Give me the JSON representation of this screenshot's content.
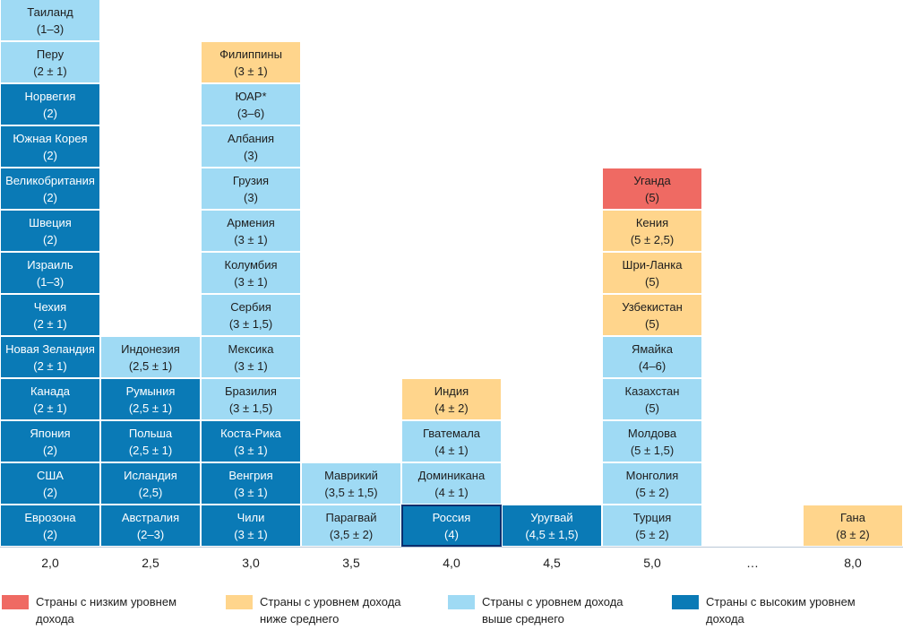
{
  "chart_data": {
    "type": "table",
    "title": "",
    "xlabel": "",
    "ylabel": "",
    "tick_labels": [
      "2,0",
      "2,5",
      "3,0",
      "3,5",
      "4,0",
      "4,5",
      "5,0",
      "…",
      "8,0"
    ],
    "colors": {
      "low": "#ef6a63",
      "lower_middle": "#ffd58c",
      "upper_middle": "#9fdaf4",
      "high": "#0a7ab6"
    },
    "legend": [
      {
        "category": "low",
        "label": "Страны с низким уровнем дохода"
      },
      {
        "category": "lower_middle",
        "label": "Страны с уровнем дохода ниже среднего"
      },
      {
        "category": "upper_middle",
        "label": "Страны с уровнем дохода выше среднего"
      },
      {
        "category": "high",
        "label": "Страны с высоким уровнем дохода"
      }
    ],
    "columns": [
      {
        "target": "2,0",
        "countries": [
          {
            "name": "Еврозона",
            "range": "(2)",
            "category": "high"
          },
          {
            "name": "США",
            "range": "(2)",
            "category": "high"
          },
          {
            "name": "Япония",
            "range": "(2)",
            "category": "high"
          },
          {
            "name": "Канада",
            "range": "(2 ± 1)",
            "category": "high"
          },
          {
            "name": "Новая Зеландия",
            "range": "(2 ± 1)",
            "category": "high"
          },
          {
            "name": "Чехия",
            "range": "(2 ± 1)",
            "category": "high"
          },
          {
            "name": "Израиль",
            "range": "(1–3)",
            "category": "high"
          },
          {
            "name": "Швеция",
            "range": "(2)",
            "category": "high"
          },
          {
            "name": "Великобритания",
            "range": "(2)",
            "category": "high"
          },
          {
            "name": "Южная Корея",
            "range": "(2)",
            "category": "high"
          },
          {
            "name": "Норвегия",
            "range": "(2)",
            "category": "high"
          },
          {
            "name": "Перу",
            "range": "(2 ± 1)",
            "category": "upper_middle"
          },
          {
            "name": "Таиланд",
            "range": "(1–3)",
            "category": "upper_middle"
          }
        ]
      },
      {
        "target": "2,5",
        "countries": [
          {
            "name": "Австралия",
            "range": "(2–3)",
            "category": "high"
          },
          {
            "name": "Исландия",
            "range": "(2,5)",
            "category": "high"
          },
          {
            "name": "Польша",
            "range": "(2,5 ± 1)",
            "category": "high"
          },
          {
            "name": "Румыния",
            "range": "(2,5 ± 1)",
            "category": "high"
          },
          {
            "name": "Индонезия",
            "range": "(2,5 ± 1)",
            "category": "upper_middle"
          }
        ]
      },
      {
        "target": "3,0",
        "countries": [
          {
            "name": "Чили",
            "range": "(3 ± 1)",
            "category": "high"
          },
          {
            "name": "Венгрия",
            "range": "(3 ± 1)",
            "category": "high"
          },
          {
            "name": "Коста-Рика",
            "range": "(3 ± 1)",
            "category": "high"
          },
          {
            "name": "Бразилия",
            "range": "(3 ± 1,5)",
            "category": "upper_middle"
          },
          {
            "name": "Мексика",
            "range": "(3 ± 1)",
            "category": "upper_middle"
          },
          {
            "name": "Сербия",
            "range": "(3 ± 1,5)",
            "category": "upper_middle"
          },
          {
            "name": "Колумбия",
            "range": "(3 ± 1)",
            "category": "upper_middle"
          },
          {
            "name": "Армения",
            "range": "(3 ± 1)",
            "category": "upper_middle"
          },
          {
            "name": "Грузия",
            "range": "(3)",
            "category": "upper_middle"
          },
          {
            "name": "Албания",
            "range": "(3)",
            "category": "upper_middle"
          },
          {
            "name": "ЮАР*",
            "range": "(3–6)",
            "category": "upper_middle"
          },
          {
            "name": "Филиппины",
            "range": "(3 ± 1)",
            "category": "lower_middle"
          }
        ]
      },
      {
        "target": "3,5",
        "countries": [
          {
            "name": "Парагвай",
            "range": "(3,5 ± 2)",
            "category": "upper_middle"
          },
          {
            "name": "Маврикий",
            "range": "(3,5 ± 1,5)",
            "category": "upper_middle"
          }
        ]
      },
      {
        "target": "4,0",
        "countries": [
          {
            "name": "Россия",
            "range": "(4)",
            "category": "high",
            "highlight": true
          },
          {
            "name": "Доминикана",
            "range": "(4 ± 1)",
            "category": "upper_middle"
          },
          {
            "name": "Гватемала",
            "range": "(4 ± 1)",
            "category": "upper_middle"
          },
          {
            "name": "Индия",
            "range": "(4 ± 2)",
            "category": "lower_middle"
          }
        ]
      },
      {
        "target": "4,5",
        "countries": [
          {
            "name": "Уругвай",
            "range": "(4,5 ± 1,5)",
            "category": "high"
          }
        ]
      },
      {
        "target": "5,0",
        "countries": [
          {
            "name": "Турция",
            "range": "(5 ± 2)",
            "category": "upper_middle"
          },
          {
            "name": "Монголия",
            "range": "(5 ± 2)",
            "category": "upper_middle"
          },
          {
            "name": "Молдова",
            "range": "(5 ± 1,5)",
            "category": "upper_middle"
          },
          {
            "name": "Казахстан",
            "range": "(5)",
            "category": "upper_middle"
          },
          {
            "name": "Ямайка",
            "range": "(4–6)",
            "category": "upper_middle"
          },
          {
            "name": "Узбекистан",
            "range": "(5)",
            "category": "lower_middle"
          },
          {
            "name": "Шри-Ланка",
            "range": "(5)",
            "category": "lower_middle"
          },
          {
            "name": "Кения",
            "range": "(5 ± 2,5)",
            "category": "lower_middle"
          },
          {
            "name": "Уганда",
            "range": "(5)",
            "category": "low"
          }
        ]
      },
      {
        "target": "…",
        "countries": []
      },
      {
        "target": "8,0",
        "countries": [
          {
            "name": "Гана",
            "range": "(8 ± 2)",
            "category": "lower_middle"
          }
        ]
      }
    ]
  }
}
